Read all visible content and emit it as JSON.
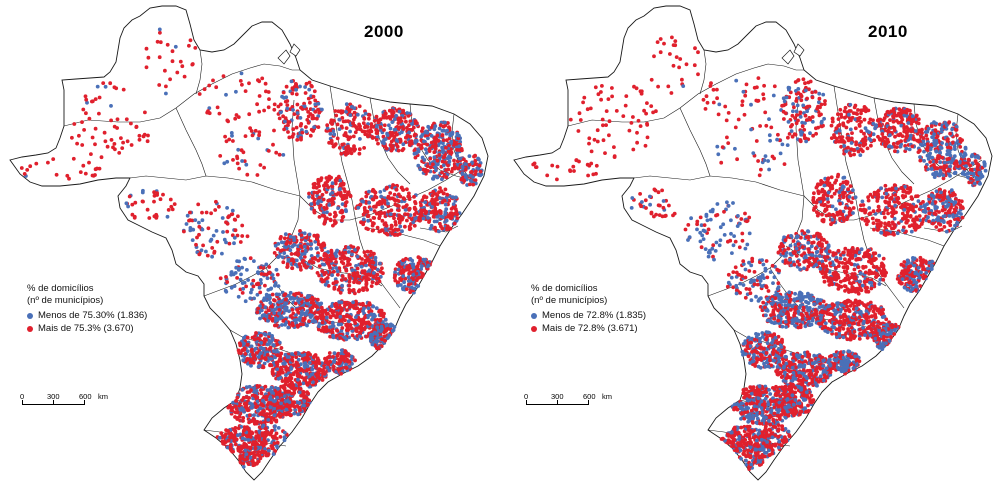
{
  "colors": {
    "less": "#4a70b8",
    "more": "#e0202d",
    "border": "#1a1a1a"
  },
  "maps": [
    {
      "year": "2000",
      "legend": {
        "title_line1": "% de domicílios",
        "title_line2": "(nº de municípios)",
        "less_label": "Menos de 75.30% (1.836)",
        "more_label": "Mais de 75.3% (3.670)"
      },
      "less_fraction": 0.333,
      "seed": 11
    },
    {
      "year": "2010",
      "legend": {
        "title_line1": "% de domicílios",
        "title_line2": "(nº de municípios)",
        "less_label": "Menos de 72.8% (1.835)",
        "more_label": "Mais de 72.8% (3.671)"
      },
      "less_fraction": 0.333,
      "seed": 29
    }
  ],
  "scale": {
    "t0": "0",
    "t1": "300",
    "t2": "600",
    "unit": "km"
  }
}
